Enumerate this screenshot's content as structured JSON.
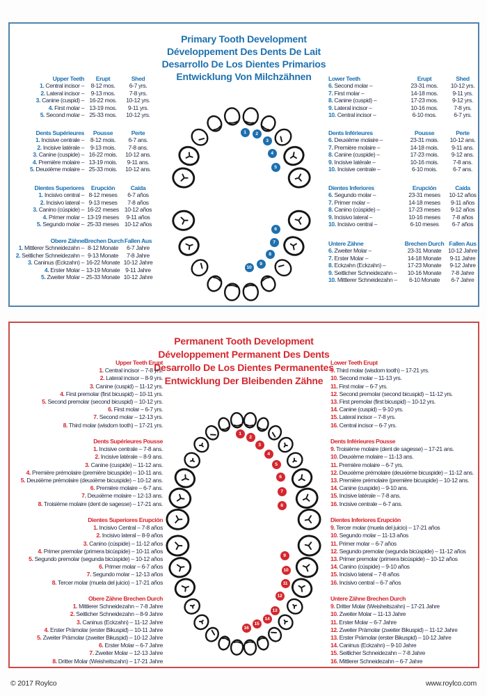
{
  "footer": {
    "copyright": "© 2017 Roylco",
    "website": "www.roylco.com"
  },
  "primary": {
    "accent_color": "#1d71ae",
    "border_color": "#4f82ab",
    "title_lines": [
      "Primary Tooth Development",
      "Développement Des Dents De Lait",
      "Desarrollo De Los Dientes Primarios",
      "Entwicklung Von Milchzähnen"
    ],
    "upper_marker_labels": [
      "1",
      "2",
      "3",
      "4",
      "5"
    ],
    "lower_marker_labels": [
      "6",
      "7",
      "8",
      "9",
      "10"
    ],
    "left_blocks": [
      {
        "headers": [
          "Upper Teeth",
          "Erupt",
          "Shed"
        ],
        "rows": [
          {
            "num": "1.",
            "name": "Central incisor",
            "erupt": "8-12 mos.",
            "shed": "6-7 yrs."
          },
          {
            "num": "2.",
            "name": "Lateral incisor",
            "erupt": "9-13 mos.",
            "shed": "7-8 yrs."
          },
          {
            "num": "3.",
            "name": "Canine (cuspid)",
            "erupt": "16-22 mos.",
            "shed": "10-12 yrs."
          },
          {
            "num": "4.",
            "name": "First molar",
            "erupt": "13-19 mos.",
            "shed": "9-11 yrs."
          },
          {
            "num": "5.",
            "name": "Second molar",
            "erupt": "25-33 mos.",
            "shed": "10-12 yrs."
          }
        ]
      },
      {
        "headers": [
          "Dents Supérieures",
          "Pousse",
          "Perte"
        ],
        "rows": [
          {
            "num": "1.",
            "name": "Incisive centrale",
            "erupt": "8-12 mois.",
            "shed": "6-7 ans."
          },
          {
            "num": "2.",
            "name": "Incisive latérale",
            "erupt": "9-13 mois.",
            "shed": "7-8 ans."
          },
          {
            "num": "3.",
            "name": "Canine (cuspide)",
            "erupt": "16-22 mois.",
            "shed": "10-12 ans."
          },
          {
            "num": "4.",
            "name": "Première molaire",
            "erupt": "13-19 mois.",
            "shed": "9-11 ans."
          },
          {
            "num": "5.",
            "name": "Deuxième molaire",
            "erupt": "25-33 mois.",
            "shed": "10-12 ans."
          }
        ]
      },
      {
        "headers": [
          "Dientes Superiores",
          "Erupción",
          "Caída"
        ],
        "rows": [
          {
            "num": "1.",
            "name": "Incisivo central",
            "erupt": "8-12 meses",
            "shed": "6-7 años"
          },
          {
            "num": "2.",
            "name": "Incisivo lateral",
            "erupt": "9-13 meses",
            "shed": "7-8 años"
          },
          {
            "num": "3.",
            "name": "Canino (cúspide)",
            "erupt": "16-22 meses",
            "shed": "10-12 años"
          },
          {
            "num": "4.",
            "name": "Primer molar",
            "erupt": "13-19 meses",
            "shed": "9-11 años"
          },
          {
            "num": "5.",
            "name": "Segundo molar",
            "erupt": "25-33 meses",
            "shed": "10-12 años"
          }
        ]
      },
      {
        "headers": [
          "Obere Zähne",
          "Brechen Durch",
          "Fallen Aus"
        ],
        "rows": [
          {
            "num": "1.",
            "name": "Mittlerer Schneidezahn",
            "erupt": "8-12 Monate",
            "shed": "6-7 Jahre"
          },
          {
            "num": "2.",
            "name": "Seitlicher Schneidezahn",
            "erupt": "9-13 Monate",
            "shed": "7-8 Jahre"
          },
          {
            "num": "3.",
            "name": "Caninus (Eckzahn)",
            "erupt": "16-22 Monate",
            "shed": "10-12 Jahre"
          },
          {
            "num": "4.",
            "name": "Erster Molar",
            "erupt": "13-19 Monate",
            "shed": "9-11 Jahre"
          },
          {
            "num": "5.",
            "name": "Zweiter Molar",
            "erupt": "25-33 Monate",
            "shed": "10-12 Jahre"
          }
        ]
      }
    ],
    "right_blocks": [
      {
        "headers": [
          "Lower Teeth",
          "Erupt",
          "Shed"
        ],
        "rows": [
          {
            "num": "6.",
            "name": "Second molar",
            "erupt": "23-31 mos.",
            "shed": "10-12 yrs."
          },
          {
            "num": "7.",
            "name": "First molar",
            "erupt": "14-18 mos.",
            "shed": "9-11 yrs."
          },
          {
            "num": "8.",
            "name": "Canine (cuspid)",
            "erupt": "17-23 mos.",
            "shed": "9-12 yrs."
          },
          {
            "num": "9.",
            "name": "Lateral incisor",
            "erupt": "10-16 mos.",
            "shed": "7-8 yrs."
          },
          {
            "num": "10.",
            "name": "Central incisor",
            "erupt": "6-10 mos.",
            "shed": "6-7 yrs."
          }
        ]
      },
      {
        "headers": [
          "Dents Inférieures",
          "Pousse",
          "Perte"
        ],
        "rows": [
          {
            "num": "6.",
            "name": "Deuxième molaire",
            "erupt": "23-31 mois.",
            "shed": "10-12 ans."
          },
          {
            "num": "7.",
            "name": "Première molaire",
            "erupt": "14-18 mois.",
            "shed": "9-11 ans."
          },
          {
            "num": "8.",
            "name": "Canine (cuspide)",
            "erupt": "17-23 mois.",
            "shed": "9-12 ans."
          },
          {
            "num": "9.",
            "name": "Incisive latérale",
            "erupt": "10-16 mois.",
            "shed": "7-8 ans."
          },
          {
            "num": "10.",
            "name": "Incisive centrale",
            "erupt": "6-10 mois.",
            "shed": "6-7 ans."
          }
        ]
      },
      {
        "headers": [
          "Dientes Inferiores",
          "Erupción",
          "Caída"
        ],
        "rows": [
          {
            "num": "6.",
            "name": "Segundo molar",
            "erupt": "23-31 meses",
            "shed": "10-12 años"
          },
          {
            "num": "7.",
            "name": "Primer molar",
            "erupt": "14-18 meses",
            "shed": "9-11 años"
          },
          {
            "num": "8.",
            "name": "Canino (cúspide)",
            "erupt": "17-23 meses",
            "shed": "9-12 años"
          },
          {
            "num": "9.",
            "name": "Incisivo lateral",
            "erupt": "10-16 meses",
            "shed": "7-8 años"
          },
          {
            "num": "10.",
            "name": "Incisivo central",
            "erupt": "6-10 meses",
            "shed": "6-7 años"
          }
        ]
      },
      {
        "headers": [
          "Untere Zähne",
          "Brechen Durch",
          "Fallen Aus"
        ],
        "rows": [
          {
            "num": "6.",
            "name": "Zweiter Molar",
            "erupt": "23-31 Monate",
            "shed": "10-12 Jahre"
          },
          {
            "num": "7.",
            "name": "Erster Molar",
            "erupt": "14-18 Monate",
            "shed": "9-11 Jahre"
          },
          {
            "num": "8.",
            "name": "Eckzahn (Eckzahn)",
            "erupt": "17-23 Monate",
            "shed": "9-12 Jahre"
          },
          {
            "num": "9.",
            "name": "Seitlicher Schneidezahn",
            "erupt": "10-16 Monate",
            "shed": "7-8 Jahre"
          },
          {
            "num": "10.",
            "name": "Mittlerer Schneidezahn",
            "erupt": "6-10 Monate",
            "shed": "6-7 Jahre"
          }
        ]
      }
    ]
  },
  "permanent": {
    "accent_color": "#d4272e",
    "border_color": "#c94a47",
    "title_lines": [
      "Permanent Tooth Development",
      "Développement Permanent Des Dents",
      "Desarrollo De Los Dientes Permanentes",
      "Entwicklung Der Bleibenden Zähne"
    ],
    "upper_marker_labels": [
      "1",
      "2",
      "3",
      "4",
      "5",
      "6",
      "7",
      "8"
    ],
    "lower_marker_labels": [
      "9",
      "10",
      "11",
      "12",
      "13",
      "14",
      "15",
      "16"
    ],
    "left_blocks": [
      {
        "header": "Upper Teeth Erupt",
        "rows": [
          {
            "num": "1.",
            "text": "Central incisor – 7-8 yrs."
          },
          {
            "num": "2.",
            "text": "Lateral incisor – 8-9 yrs."
          },
          {
            "num": "3.",
            "text": "Canine (cuspid) – 11-12 yrs."
          },
          {
            "num": "4.",
            "text": "First premolar (first bicuspid) – 10-11 yrs."
          },
          {
            "num": "5.",
            "text": "Second premolar (second bicuspid) – 10-12 yrs."
          },
          {
            "num": "6.",
            "text": "First molar – 6-7 yrs."
          },
          {
            "num": "7.",
            "text": "Second molar – 12-13 yrs."
          },
          {
            "num": "8.",
            "text": "Third molar (wisdom tooth) – 17-21 yrs."
          }
        ]
      },
      {
        "header": "Dents Supérieures Pousse",
        "rows": [
          {
            "num": "1.",
            "text": "Incisive centrale – 7-8 ans."
          },
          {
            "num": "2.",
            "text": "Incisive latérale – 8-9 ans."
          },
          {
            "num": "3.",
            "text": "Canine (cuspide) – 11-12 ans."
          },
          {
            "num": "4.",
            "text": "Première prémolaire (première bicuspide) – 10-11 ans."
          },
          {
            "num": "5.",
            "text": "Deuxième prémolaire (deuxième bicuspide) – 10-12 ans."
          },
          {
            "num": "6.",
            "text": "Première molaire – 6-7 ans."
          },
          {
            "num": "7.",
            "text": "Deuxième molaire – 12-13 ans."
          },
          {
            "num": "8.",
            "text": "Troisième molaire (dent de sagesse) – 17-21 ans."
          }
        ]
      },
      {
        "header": "Dientes Superiores Erupción",
        "rows": [
          {
            "num": "1.",
            "text": "Incisivo Central – 7-8 años"
          },
          {
            "num": "2.",
            "text": "Incisivo lateral – 8-9 años"
          },
          {
            "num": "3.",
            "text": "Canino (cúspide) – 11-12 años"
          },
          {
            "num": "4.",
            "text": "Primer premolar (primera bicúspide) – 10-11 años"
          },
          {
            "num": "5.",
            "text": "Segundo premolar (segunda bicúspide) – 10-12 años"
          },
          {
            "num": "6.",
            "text": "Primer molar – 6-7 años"
          },
          {
            "num": "7.",
            "text": "Segundo molar – 12-13 años"
          },
          {
            "num": "8.",
            "text": "Tercer molar (muela del juicio) – 17-21 años"
          }
        ]
      },
      {
        "header": "Obere Zähne Brechen Durch",
        "rows": [
          {
            "num": "1.",
            "text": "Mittlerer Schneidezahn – 7-8 Jahre"
          },
          {
            "num": "2.",
            "text": "Seitlicher Schneidezahn – 8-9 Jahre"
          },
          {
            "num": "3.",
            "text": "Caninus (Eckzahn) – 11-12 Jahre"
          },
          {
            "num": "4.",
            "text": "Erster Prämolar (erster Bikuspid) – 10-11 Jahre"
          },
          {
            "num": "5.",
            "text": "Zweiter Prämolar (zweiter Bikuspid) – 10-12 Jahre"
          },
          {
            "num": "6.",
            "text": "Erster Molar – 6-7 Jahre"
          },
          {
            "num": "7.",
            "text": "Zweiter Molar – 12-13 Jahre"
          },
          {
            "num": "8.",
            "text": "Dritter Molar (Weisheitszahn) – 17-21 Jahre"
          }
        ]
      }
    ],
    "right_blocks": [
      {
        "header": "Lower Teeth Erupt",
        "rows": [
          {
            "num": "9.",
            "text": "Third molar (wisdom tooth) – 17-21 yrs."
          },
          {
            "num": "10.",
            "text": "Second molar – 11-13 yrs."
          },
          {
            "num": "11.",
            "text": "First molar – 6-7 yrs."
          },
          {
            "num": "12.",
            "text": "Second premolar (second bicuspid) – 11-12 yrs."
          },
          {
            "num": "13.",
            "text": "First premolar (first bicuspid) – 10-12 yrs."
          },
          {
            "num": "14.",
            "text": "Canine (cuspid) – 9-10 yrs."
          },
          {
            "num": "15.",
            "text": "Lateral incisor – 7-8 yrs."
          },
          {
            "num": "16.",
            "text": "Central incisor – 6-7 yrs."
          }
        ]
      },
      {
        "header": "Dents Inférieures Pousse",
        "rows": [
          {
            "num": "9.",
            "text": "Troisième molaire (dent de sagesse) – 17-21 ans."
          },
          {
            "num": "10.",
            "text": "Deuxième molaire – 11-13 ans."
          },
          {
            "num": "11.",
            "text": "Première molaire – 6-7 yrs."
          },
          {
            "num": "12.",
            "text": "Deuxième prémolaire (deuxième bicuspide) – 11-12 ans."
          },
          {
            "num": "13.",
            "text": "Première prémolaire (première bicuspide) – 10-12 ans."
          },
          {
            "num": "14.",
            "text": "Canine (cuspide) – 9-10 ans."
          },
          {
            "num": "15.",
            "text": "Incisive latérale – 7-8 ans."
          },
          {
            "num": "16.",
            "text": "Incisive centrale – 6-7 ans."
          }
        ]
      },
      {
        "header": "Dientes Inferiores Erupción",
        "rows": [
          {
            "num": "9.",
            "text": "Tercer molar (muela del juicio) – 17-21 años"
          },
          {
            "num": "10.",
            "text": "Segundo molar – 11-13 años"
          },
          {
            "num": "11.",
            "text": "Primer molar – 6-7 años"
          },
          {
            "num": "12.",
            "text": "Segundo premolar (segunda bicúspide) – 11-12 años"
          },
          {
            "num": "13.",
            "text": "Primer premolar (primera bicúspide) – 10-12 años"
          },
          {
            "num": "14.",
            "text": "Canino (cúspide) – 9-10 años"
          },
          {
            "num": "15.",
            "text": "Incisivo lateral – 7-8 años"
          },
          {
            "num": "16.",
            "text": "Incisivo central – 6-7 años"
          }
        ]
      },
      {
        "header": "Untere Zähne Brechen Durch",
        "rows": [
          {
            "num": "9.",
            "text": "Dritter Molar (Weisheitszahn) – 17-21 Jahre"
          },
          {
            "num": "10.",
            "text": "Zweiter Molar – 11-13 Jahre"
          },
          {
            "num": "11.",
            "text": "Erster Molar – 6-7 Jahre"
          },
          {
            "num": "12.",
            "text": "Zweiter Prämolar (zweiter Bikuspid) – 11-12 Jahre"
          },
          {
            "num": "13.",
            "text": "Erster Prämolar (erster Bikuspid) – 10-12 Jahre"
          },
          {
            "num": "14.",
            "text": "Caninus (Eckzahn) – 9-10 Jahre"
          },
          {
            "num": "15.",
            "text": "Seitlicher Schneidezahn – 7-8 Jahre"
          },
          {
            "num": "16.",
            "text": "Mittlerer Schneidezahn – 6-7 Jahre"
          }
        ]
      }
    ]
  }
}
